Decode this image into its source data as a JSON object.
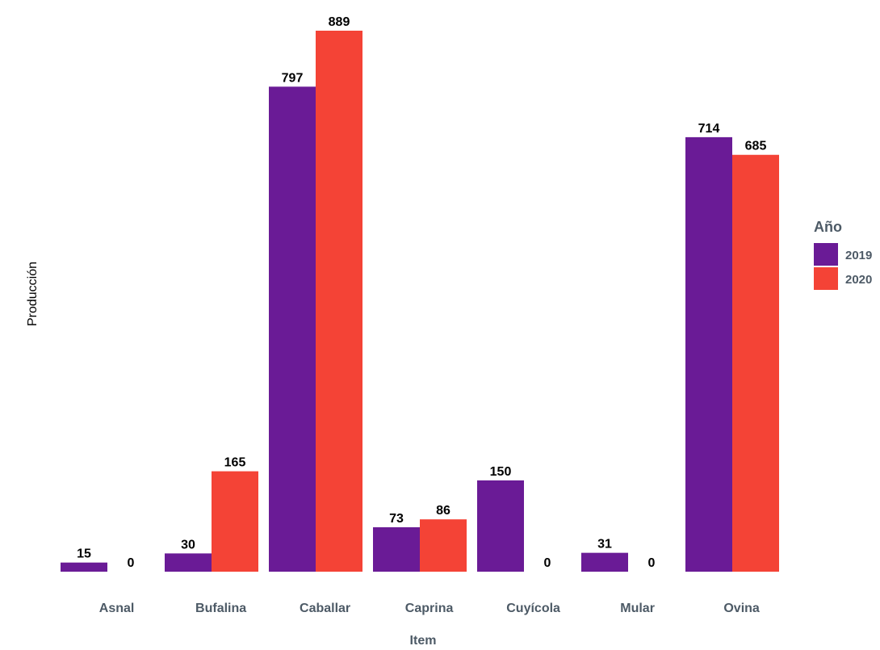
{
  "chart_data": {
    "type": "bar",
    "categories": [
      "Asnal",
      "Bufalina",
      "Caballar",
      "Caprina",
      "Cuyícola",
      "Mular",
      "Ovina"
    ],
    "series": [
      {
        "name": "2019",
        "values": [
          15,
          30,
          797,
          73,
          150,
          31,
          714
        ],
        "color": "#6a1b96"
      },
      {
        "name": "2020",
        "values": [
          0,
          165,
          889,
          86,
          0,
          0,
          685
        ],
        "color": "#f44336"
      }
    ],
    "xlabel": "Item",
    "ylabel": "Producción",
    "ylim": [
      0,
      889
    ],
    "grid": false,
    "legend": {
      "title": "Año",
      "placement": "right"
    }
  }
}
